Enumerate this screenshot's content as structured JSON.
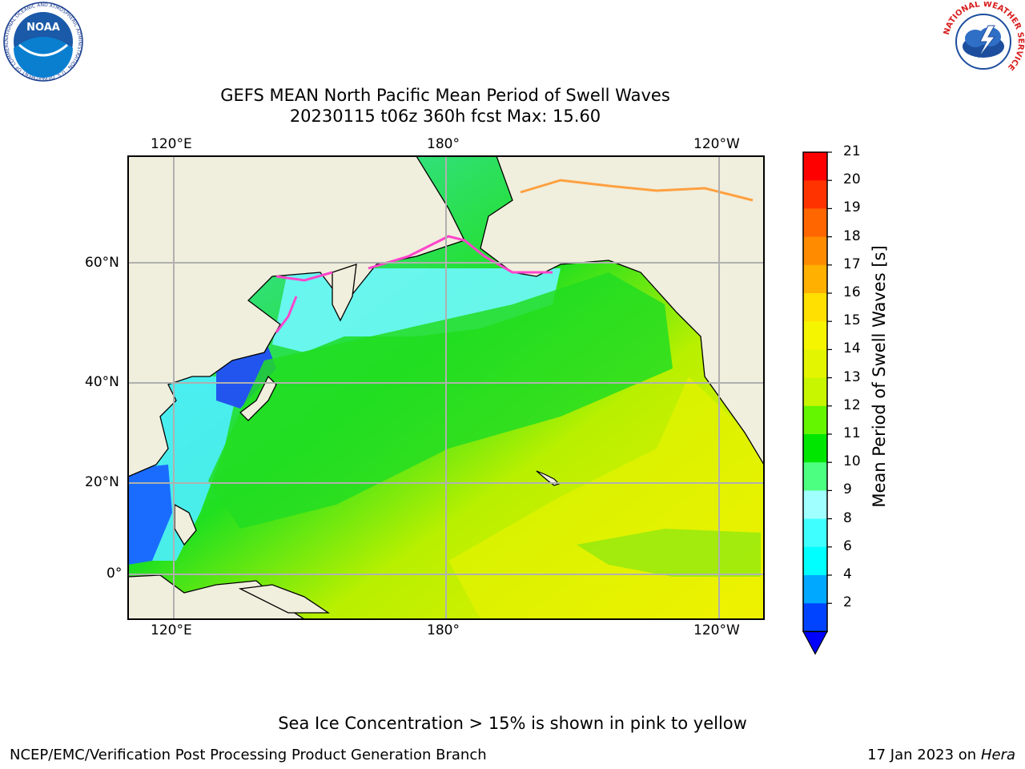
{
  "title_line1": "GEFS MEAN North Pacific Mean Period of Swell Waves",
  "title_line2": "20230115 t06z 360h fcst   Max: 15.60",
  "lon_labels": [
    "120°E",
    "180°",
    "120°W"
  ],
  "lat_labels": [
    "60°N",
    "40°N",
    "20°N",
    "0°"
  ],
  "colorbar": {
    "label": "Mean Period of Swell Waves [s]",
    "ticks": [
      "21",
      "20",
      "19",
      "18",
      "17",
      "16",
      "15",
      "14",
      "13",
      "12",
      "11",
      "10",
      "9",
      "8",
      "6",
      "4",
      "2"
    ],
    "colors": [
      "#ff0000",
      "#ff3300",
      "#ff6600",
      "#ff8c00",
      "#ffb000",
      "#ffe000",
      "#f5f500",
      "#e3f500",
      "#c8f500",
      "#64f500",
      "#00e600",
      "#4dff80",
      "#a0ffff",
      "#40ffff",
      "#00ffff",
      "#00a8ff",
      "#0044ff"
    ],
    "under_color": "#0000ff"
  },
  "note": "Sea Ice Concentration > 15% is shown in pink to yellow",
  "footer_left": "NCEP/EMC/Verification Post Processing Product Generation Branch",
  "footer_right_date": "17 Jan 2023 on",
  "footer_right_host": "Hera",
  "logos": {
    "noaa_text": "NOAA",
    "noaa_ring": "NATIONAL OCEANIC AND ATMOSPHERIC ADMINISTRATION · U.S. DEPARTMENT OF COMMERCE",
    "nws_ring": "NATIONAL WEATHER SERVICE"
  },
  "colors": {
    "land": "#f0eedc",
    "grid": "#b0b0b0"
  }
}
